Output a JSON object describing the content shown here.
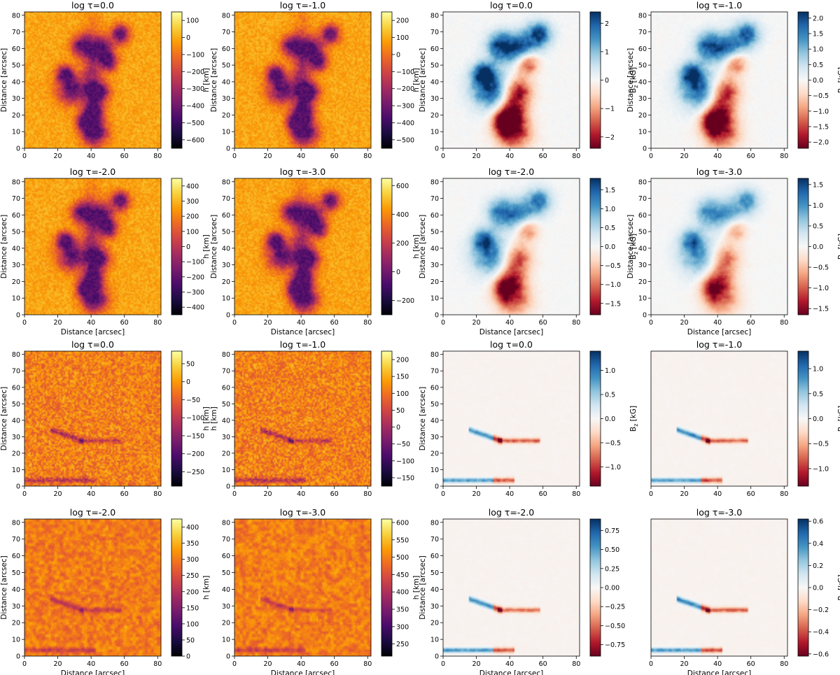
{
  "figure": {
    "description_rows": 4,
    "description_cols": 4
  },
  "colors": {
    "inferno": [
      "#000004",
      "#1b0c41",
      "#4a0c6b",
      "#781c6d",
      "#a52c60",
      "#cf4446",
      "#ed6925",
      "#fb9b06",
      "#f7d13d",
      "#fcffa4"
    ],
    "rdbu": [
      "#67001f",
      "#b2182b",
      "#d6604d",
      "#f4a582",
      "#fddbc7",
      "#f7f7f7",
      "#d1e5f0",
      "#92c5de",
      "#4393c3",
      "#2166ac",
      "#053061"
    ]
  },
  "chart_data": [
    {
      "type": "heatmap",
      "row": 0,
      "col": 0,
      "title": "log τ=0.0",
      "xlabel": "",
      "ylabel": "Distance [arcsec]",
      "colorbar_label": "h [km]",
      "colormap": "inferno",
      "scene": "active",
      "quantity": "h",
      "tau_index": 0,
      "xlim": [
        0,
        82
      ],
      "ylim": [
        0,
        82
      ],
      "xticks": [
        "0",
        "20",
        "40",
        "60",
        "80"
      ],
      "yticks": [
        "0",
        "10",
        "20",
        "30",
        "40",
        "50",
        "60",
        "70",
        "80"
      ],
      "clim": [
        -650,
        150
      ],
      "cticks": [
        {
          "v": 100,
          "t": "100"
        },
        {
          "v": 0,
          "t": "0"
        },
        {
          "v": -100,
          "t": "−100"
        },
        {
          "v": -200,
          "t": "−200"
        },
        {
          "v": -300,
          "t": "−300"
        },
        {
          "v": -400,
          "t": "−400"
        },
        {
          "v": -500,
          "t": "−500"
        },
        {
          "v": -600,
          "t": "−600"
        }
      ]
    },
    {
      "type": "heatmap",
      "row": 0,
      "col": 1,
      "title": "log τ=-1.0",
      "xlabel": "",
      "ylabel": "Distance [arcsec]",
      "colorbar_label": "h [km]",
      "colormap": "inferno",
      "scene": "active",
      "quantity": "h",
      "tau_index": 1,
      "xlim": [
        0,
        82
      ],
      "ylim": [
        0,
        82
      ],
      "xticks": [
        "0",
        "20",
        "40",
        "60",
        "80"
      ],
      "yticks": [
        "0",
        "10",
        "20",
        "30",
        "40",
        "50",
        "60",
        "70",
        "80"
      ],
      "clim": [
        -550,
        250
      ],
      "cticks": [
        {
          "v": 200,
          "t": "200"
        },
        {
          "v": 100,
          "t": "100"
        },
        {
          "v": 0,
          "t": "0"
        },
        {
          "v": -100,
          "t": "−100"
        },
        {
          "v": -200,
          "t": "−200"
        },
        {
          "v": -300,
          "t": "−300"
        },
        {
          "v": -400,
          "t": "−400"
        },
        {
          "v": -500,
          "t": "−500"
        }
      ]
    },
    {
      "type": "heatmap",
      "row": 0,
      "col": 2,
      "title": "log τ=0.0",
      "xlabel": "",
      "ylabel": "Distance [arcsec]",
      "colorbar_label": "B",
      "colorbar_sub": "z",
      "colorbar_unit": " [kG]",
      "colormap": "rdbu",
      "scene": "active",
      "quantity": "b",
      "tau_index": 0,
      "xlim": [
        0,
        82
      ],
      "ylim": [
        0,
        82
      ],
      "xticks": [
        "0",
        "20",
        "40",
        "60",
        "80"
      ],
      "yticks": [
        "0",
        "10",
        "20",
        "30",
        "40",
        "50",
        "60",
        "70",
        "80"
      ],
      "clim": [
        -2.4,
        2.4
      ],
      "cticks": [
        {
          "v": 2,
          "t": "2"
        },
        {
          "v": 1,
          "t": "1"
        },
        {
          "v": 0,
          "t": "0"
        },
        {
          "v": -1,
          "t": "−1"
        },
        {
          "v": -2,
          "t": "−2"
        }
      ]
    },
    {
      "type": "heatmap",
      "row": 0,
      "col": 3,
      "title": "log τ=-1.0",
      "xlabel": "",
      "ylabel": "Distance [arcsec]",
      "colorbar_label": "B",
      "colorbar_sub": "z",
      "colorbar_unit": " [kG]",
      "colormap": "rdbu",
      "scene": "active",
      "quantity": "b",
      "tau_index": 1,
      "xlim": [
        0,
        82
      ],
      "ylim": [
        0,
        82
      ],
      "xticks": [
        "0",
        "20",
        "40",
        "60",
        "80"
      ],
      "yticks": [
        "0",
        "10",
        "20",
        "30",
        "40",
        "50",
        "60",
        "70",
        "80"
      ],
      "clim": [
        -2.2,
        2.2
      ],
      "cticks": [
        {
          "v": 2,
          "t": "2.0"
        },
        {
          "v": 1.5,
          "t": "1.5"
        },
        {
          "v": 1,
          "t": "1.0"
        },
        {
          "v": 0.5,
          "t": "0.5"
        },
        {
          "v": 0,
          "t": "0.0"
        },
        {
          "v": -0.5,
          "t": "−0.5"
        },
        {
          "v": -1,
          "t": "−1.0"
        },
        {
          "v": -1.5,
          "t": "−1.5"
        },
        {
          "v": -2,
          "t": "−2.0"
        }
      ]
    },
    {
      "type": "heatmap",
      "row": 1,
      "col": 0,
      "title": "log τ=-2.0",
      "xlabel": "Distance [arcsec]",
      "ylabel": "Distance [arcsec]",
      "colorbar_label": "h [km]",
      "colormap": "inferno",
      "scene": "active",
      "quantity": "h",
      "tau_index": 2,
      "xlim": [
        0,
        82
      ],
      "ylim": [
        0,
        82
      ],
      "xticks": [
        "0",
        "20",
        "40",
        "60",
        "80"
      ],
      "yticks": [
        "0",
        "10",
        "20",
        "30",
        "40",
        "50",
        "60",
        "70",
        "80"
      ],
      "clim": [
        -450,
        450
      ],
      "cticks": [
        {
          "v": 400,
          "t": "400"
        },
        {
          "v": 300,
          "t": "300"
        },
        {
          "v": 200,
          "t": "200"
        },
        {
          "v": 100,
          "t": "100"
        },
        {
          "v": 0,
          "t": "0"
        },
        {
          "v": -100,
          "t": "−100"
        },
        {
          "v": -200,
          "t": "−200"
        },
        {
          "v": -300,
          "t": "−300"
        },
        {
          "v": -400,
          "t": "−400"
        }
      ]
    },
    {
      "type": "heatmap",
      "row": 1,
      "col": 1,
      "title": "log τ=-3.0",
      "xlabel": "Distance [arcsec]",
      "ylabel": "Distance [arcsec]",
      "colorbar_label": "h [km]",
      "colormap": "inferno",
      "scene": "active",
      "quantity": "h",
      "tau_index": 3,
      "xlim": [
        0,
        82
      ],
      "ylim": [
        0,
        82
      ],
      "xticks": [
        "0",
        "20",
        "40",
        "60",
        "80"
      ],
      "yticks": [
        "0",
        "10",
        "20",
        "30",
        "40",
        "50",
        "60",
        "70",
        "80"
      ],
      "clim": [
        -300,
        650
      ],
      "cticks": [
        {
          "v": 600,
          "t": "600"
        },
        {
          "v": 400,
          "t": "400"
        },
        {
          "v": 200,
          "t": "200"
        },
        {
          "v": 0,
          "t": "0"
        },
        {
          "v": -200,
          "t": "−200"
        }
      ]
    },
    {
      "type": "heatmap",
      "row": 1,
      "col": 2,
      "title": "log τ=-2.0",
      "xlabel": "Distance [arcsec]",
      "ylabel": "Distance [arcsec]",
      "colorbar_label": "B",
      "colorbar_sub": "z",
      "colorbar_unit": " [kG]",
      "colormap": "rdbu",
      "scene": "active",
      "quantity": "b",
      "tau_index": 2,
      "xlim": [
        0,
        82
      ],
      "ylim": [
        0,
        82
      ],
      "xticks": [
        "0",
        "20",
        "40",
        "60",
        "80"
      ],
      "yticks": [
        "0",
        "10",
        "20",
        "30",
        "40",
        "50",
        "60",
        "70",
        "80"
      ],
      "clim": [
        -1.8,
        1.8
      ],
      "cticks": [
        {
          "v": 1.5,
          "t": "1.5"
        },
        {
          "v": 1,
          "t": "1.0"
        },
        {
          "v": 0.5,
          "t": "0.5"
        },
        {
          "v": 0,
          "t": "0.0"
        },
        {
          "v": -0.5,
          "t": "−0.5"
        },
        {
          "v": -1,
          "t": "−1.0"
        },
        {
          "v": -1.5,
          "t": "−1.5"
        }
      ]
    },
    {
      "type": "heatmap",
      "row": 1,
      "col": 3,
      "title": "log τ=-3.0",
      "xlabel": "Distance [arcsec]",
      "ylabel": "Distance [arcsec]",
      "colorbar_label": "B",
      "colorbar_sub": "z",
      "colorbar_unit": " [kG]",
      "colormap": "rdbu",
      "scene": "active",
      "quantity": "b",
      "tau_index": 3,
      "xlim": [
        0,
        82
      ],
      "ylim": [
        0,
        82
      ],
      "xticks": [
        "0",
        "20",
        "40",
        "60",
        "80"
      ],
      "yticks": [
        "0",
        "10",
        "20",
        "30",
        "40",
        "50",
        "60",
        "70",
        "80"
      ],
      "clim": [
        -1.65,
        1.65
      ],
      "cticks": [
        {
          "v": 1.5,
          "t": "1.5"
        },
        {
          "v": 1,
          "t": "1.0"
        },
        {
          "v": 0.5,
          "t": "0.5"
        },
        {
          "v": 0,
          "t": "0.0"
        },
        {
          "v": -0.5,
          "t": "−0.5"
        },
        {
          "v": -1,
          "t": "−1.0"
        },
        {
          "v": -1.5,
          "t": "−1.5"
        }
      ]
    },
    {
      "type": "heatmap",
      "row": 2,
      "col": 0,
      "title": "log τ=0.0",
      "xlabel": "",
      "ylabel": "Distance [arcsec]",
      "colorbar_label": "h [km]",
      "colormap": "inferno",
      "scene": "quiet",
      "quantity": "h",
      "tau_index": 0,
      "xlim": [
        0,
        82
      ],
      "ylim": [
        0,
        82
      ],
      "xticks": [
        "0",
        "20",
        "40",
        "60",
        "80"
      ],
      "yticks": [
        "0",
        "10",
        "20",
        "30",
        "40",
        "50",
        "60",
        "70",
        "80"
      ],
      "clim": [
        -290,
        85
      ],
      "cticks": [
        {
          "v": 50,
          "t": "50"
        },
        {
          "v": 0,
          "t": "0"
        },
        {
          "v": -50,
          "t": "−50"
        },
        {
          "v": -100,
          "t": "−100"
        },
        {
          "v": -150,
          "t": "−150"
        },
        {
          "v": -200,
          "t": "−200"
        },
        {
          "v": -250,
          "t": "−250"
        }
      ]
    },
    {
      "type": "heatmap",
      "row": 2,
      "col": 1,
      "title": "log τ=-1.0",
      "xlabel": "",
      "ylabel": "h [km]",
      "colorbar_label": "",
      "colormap": "inferno",
      "scene": "quiet",
      "quantity": "h",
      "tau_index": 1,
      "xlim": [
        0,
        82
      ],
      "ylim": [
        0,
        82
      ],
      "xticks": [
        "0",
        "20",
        "40",
        "60",
        "80"
      ],
      "yticks": [
        "0",
        "10",
        "20",
        "30",
        "40",
        "50",
        "60",
        "70",
        "80"
      ],
      "clim": [
        -175,
        225
      ],
      "cticks": [
        {
          "v": 200,
          "t": "200"
        },
        {
          "v": 150,
          "t": "150"
        },
        {
          "v": 100,
          "t": "100"
        },
        {
          "v": 50,
          "t": "50"
        },
        {
          "v": 0,
          "t": "0"
        },
        {
          "v": -50,
          "t": "−50"
        },
        {
          "v": -100,
          "t": "−100"
        },
        {
          "v": -150,
          "t": "−150"
        }
      ]
    },
    {
      "type": "heatmap",
      "row": 2,
      "col": 2,
      "title": "log τ=0.0",
      "xlabel": "",
      "ylabel": "Distance [arcsec]",
      "colorbar_label": "B",
      "colorbar_sub": "z",
      "colorbar_unit": " [kG]",
      "colormap": "rdbu",
      "scene": "quiet",
      "quantity": "b",
      "tau_index": 0,
      "xlim": [
        0,
        82
      ],
      "ylim": [
        0,
        82
      ],
      "xticks": [
        "0",
        "20",
        "40",
        "60",
        "80"
      ],
      "yticks": [
        "0",
        "10",
        "20",
        "30",
        "40",
        "50",
        "60",
        "70",
        "80"
      ],
      "clim": [
        -1.4,
        1.4
      ],
      "cticks": [
        {
          "v": 1,
          "t": "1.0"
        },
        {
          "v": 0.5,
          "t": "0.5"
        },
        {
          "v": 0,
          "t": "0.0"
        },
        {
          "v": -0.5,
          "t": "−0.5"
        },
        {
          "v": -1,
          "t": "−1.0"
        }
      ]
    },
    {
      "type": "heatmap",
      "row": 2,
      "col": 3,
      "title": "log τ=-1.0",
      "xlabel": "",
      "ylabel": "",
      "colorbar_label": "B",
      "colorbar_sub": "z",
      "colorbar_unit": " [kG]",
      "colormap": "rdbu",
      "scene": "quiet",
      "quantity": "b",
      "tau_index": 1,
      "xlim": [
        0,
        82
      ],
      "ylim": [
        0,
        82
      ],
      "xticks": [
        "0",
        "20",
        "40",
        "60",
        "80"
      ],
      "yticks": [],
      "clim": [
        -1.35,
        1.35
      ],
      "cticks": [
        {
          "v": 1,
          "t": "1.0"
        },
        {
          "v": 0.5,
          "t": "0.5"
        },
        {
          "v": 0,
          "t": "0.0"
        },
        {
          "v": -0.5,
          "t": "−0.5"
        },
        {
          "v": -1,
          "t": "−1.0"
        }
      ]
    },
    {
      "type": "heatmap",
      "row": 3,
      "col": 0,
      "title": "log τ=-2.0",
      "xlabel": "Distance [arcsec]",
      "ylabel": "Distance [arcsec]",
      "colorbar_label": "h [km]",
      "colormap": "inferno",
      "scene": "quiet",
      "quantity": "h",
      "tau_index": 2,
      "xlim": [
        0,
        82
      ],
      "ylim": [
        0,
        82
      ],
      "xticks": [
        "0",
        "20",
        "40",
        "60",
        "80"
      ],
      "yticks": [
        "0",
        "10",
        "20",
        "30",
        "40",
        "50",
        "60",
        "70",
        "80"
      ],
      "clim": [
        0,
        425
      ],
      "cticks": [
        {
          "v": 400,
          "t": "400"
        },
        {
          "v": 350,
          "t": "350"
        },
        {
          "v": 300,
          "t": "300"
        },
        {
          "v": 250,
          "t": "250"
        },
        {
          "v": 200,
          "t": "200"
        },
        {
          "v": 150,
          "t": "150"
        },
        {
          "v": 100,
          "t": "100"
        },
        {
          "v": 50,
          "t": "50"
        },
        {
          "v": 0,
          "t": "0"
        }
      ]
    },
    {
      "type": "heatmap",
      "row": 3,
      "col": 1,
      "title": "log τ=-3.0",
      "xlabel": "Distance [arcsec]",
      "ylabel": "",
      "colorbar_label": "h [km]",
      "colormap": "inferno",
      "scene": "quiet",
      "quantity": "h",
      "tau_index": 3,
      "xlim": [
        0,
        82
      ],
      "ylim": [
        0,
        82
      ],
      "xticks": [
        "0",
        "20",
        "40",
        "60",
        "80"
      ],
      "yticks": [
        "0",
        "10",
        "20",
        "30",
        "40",
        "50",
        "60",
        "70",
        "80"
      ],
      "clim": [
        215,
        610
      ],
      "cticks": [
        {
          "v": 600,
          "t": "600"
        },
        {
          "v": 550,
          "t": "550"
        },
        {
          "v": 500,
          "t": "500"
        },
        {
          "v": 450,
          "t": "450"
        },
        {
          "v": 400,
          "t": "400"
        },
        {
          "v": 350,
          "t": "350"
        },
        {
          "v": 300,
          "t": "300"
        },
        {
          "v": 250,
          "t": "250"
        }
      ]
    },
    {
      "type": "heatmap",
      "row": 3,
      "col": 2,
      "title": "log τ=-2.0",
      "xlabel": "Distance [arcsec]",
      "ylabel": "Distance [arcsec]",
      "colorbar_label": "",
      "colormap": "rdbu",
      "scene": "quiet",
      "quantity": "b",
      "tau_index": 2,
      "xlim": [
        0,
        82
      ],
      "ylim": [
        0,
        82
      ],
      "xticks": [
        "0",
        "20",
        "40",
        "60",
        "80"
      ],
      "yticks": [
        "0",
        "10",
        "20",
        "30",
        "40",
        "50",
        "60",
        "70",
        "80"
      ],
      "clim": [
        -0.9,
        0.9
      ],
      "cticks": [
        {
          "v": 0.75,
          "t": "0.75"
        },
        {
          "v": 0.5,
          "t": "0.50"
        },
        {
          "v": 0.25,
          "t": "0.25"
        },
        {
          "v": 0,
          "t": "0.00"
        },
        {
          "v": -0.25,
          "t": "−0.25"
        },
        {
          "v": -0.5,
          "t": "−0.50"
        },
        {
          "v": -0.75,
          "t": "−0.75"
        }
      ]
    },
    {
      "type": "heatmap",
      "row": 3,
      "col": 3,
      "title": "log τ=-3.0",
      "xlabel": "Distance [arcsec]",
      "ylabel": "",
      "colorbar_label": "B",
      "colorbar_sub": "z",
      "colorbar_unit": " [kG]",
      "colormap": "rdbu",
      "scene": "quiet",
      "quantity": "b",
      "tau_index": 3,
      "xlim": [
        0,
        82
      ],
      "ylim": [
        0,
        82
      ],
      "xticks": [
        "0",
        "20",
        "40",
        "60",
        "80"
      ],
      "yticks": [],
      "clim": [
        -0.62,
        0.62
      ],
      "cticks": [
        {
          "v": 0.6,
          "t": "0.6"
        },
        {
          "v": 0.4,
          "t": "0.4"
        },
        {
          "v": 0.2,
          "t": "0.2"
        },
        {
          "v": 0,
          "t": "0.0"
        },
        {
          "v": -0.2,
          "t": "−0.2"
        },
        {
          "v": -0.4,
          "t": "−0.4"
        },
        {
          "v": -0.6,
          "t": "−0.6"
        }
      ]
    }
  ]
}
